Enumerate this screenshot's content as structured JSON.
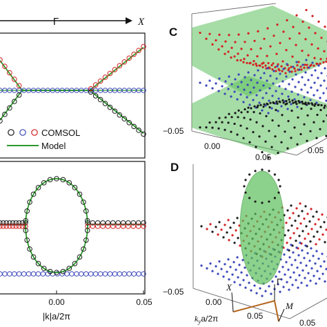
{
  "panels": {
    "top_left": {
      "path_labels": {
        "gamma": "Γ",
        "x": "X"
      },
      "legend": {
        "comsol_label": "COMSOL",
        "model_label": "Model"
      }
    },
    "bottom_left": {
      "xlabel": "|k|a/2π",
      "xticks": [
        "0.00",
        "0.05"
      ],
      "xlim": [
        -0.05,
        0.05
      ]
    },
    "C": {
      "letter": "C",
      "z_tick": "−0.05",
      "x_ticks": [
        "0.00",
        "0.05"
      ],
      "y_tick": "0.05"
    },
    "D": {
      "letter": "D",
      "z_tick": "−0.05",
      "x_ticks": [
        "0.00",
        "0.05"
      ],
      "y_tick": "0.05",
      "xlabel": "k",
      "xlabel_sub": "y",
      "xlabel_rest": "a/2π",
      "bz_labels": {
        "x": "X",
        "gamma": "Γ",
        "m": "M"
      }
    }
  },
  "colors": {
    "upper_band": "#d42020",
    "flat_band": "#3a46b8",
    "lower_band": "#1a1a1a",
    "model_line": "#2a9a2a",
    "surface_green": "#5cc05c",
    "arrow_brown": "#b5651d"
  },
  "chart_data": [
    {
      "type": "line",
      "panel": "top-left",
      "series": [
        {
          "name": "COMSOL",
          "note": "upper band",
          "x": [
            -0.05,
            -0.04,
            -0.03,
            -0.02,
            -0.01,
            0.0,
            0.01,
            0.02,
            0.03,
            0.04,
            0.05
          ]
        },
        {
          "name": "Model"
        }
      ]
    },
    {
      "type": "line",
      "panel": "bottom-left",
      "xlim": [
        -0.05,
        0.05
      ]
    }
  ]
}
